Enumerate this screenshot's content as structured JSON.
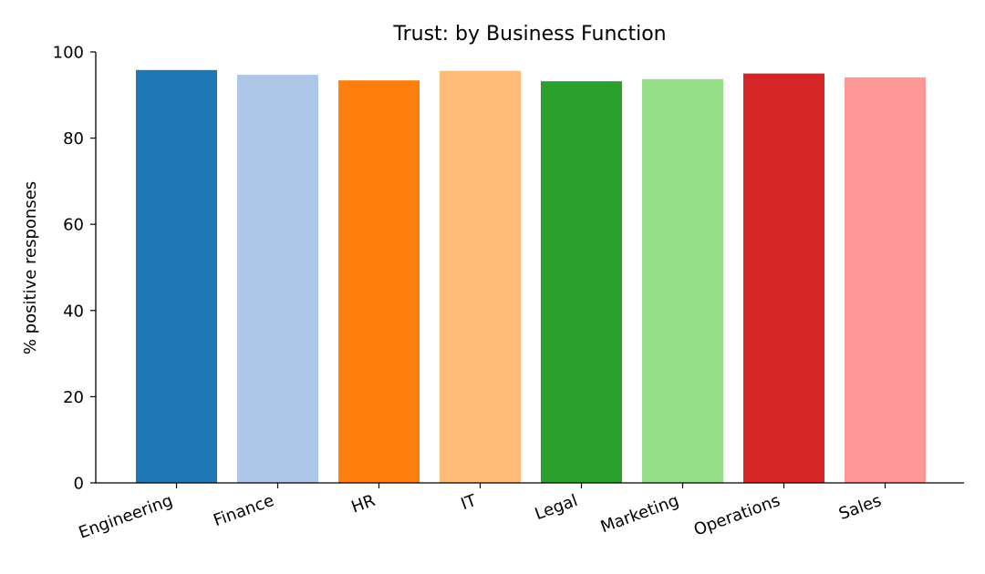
{
  "chart_data": {
    "type": "bar",
    "title": "Trust: by Business Function",
    "xlabel": "",
    "ylabel": "% positive responses",
    "ylim": [
      0,
      100
    ],
    "yticks": [
      0,
      20,
      40,
      60,
      80,
      100
    ],
    "categories": [
      "Engineering",
      "Finance",
      "HR",
      "IT",
      "Legal",
      "Marketing",
      "Operations",
      "Sales"
    ],
    "values": [
      95.8,
      94.7,
      93.4,
      95.6,
      93.2,
      93.7,
      95.0,
      94.1
    ],
    "colors": [
      "#1f77b4",
      "#aec7e8",
      "#ff7f0e",
      "#ffbb78",
      "#2ca02c",
      "#98df8a",
      "#d62728",
      "#ff9896"
    ],
    "grid": false,
    "legend": "none"
  }
}
